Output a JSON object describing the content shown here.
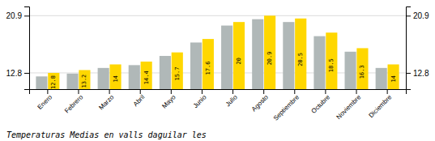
{
  "chart_data": {
    "type": "bar",
    "title": "Temperaturas Medias en valls daguilar les",
    "categories": [
      "Enero",
      "Febrero",
      "Marzo",
      "Abril",
      "Mayo",
      "Junio",
      "Julio",
      "Agosto",
      "Septiembre",
      "Octubre",
      "Noviembre",
      "Diciembre"
    ],
    "series": [
      {
        "color": "#B0B8B8",
        "values": [
          12.3,
          12.7,
          13.5,
          13.9,
          15.2,
          17.1,
          19.5,
          20.4,
          20.0,
          18.0,
          15.8,
          13.5
        ]
      },
      {
        "color": "#FFD700",
        "data_labels": true,
        "values": [
          12.8,
          13.2,
          14.0,
          14.4,
          15.7,
          17.6,
          20.0,
          20.9,
          20.5,
          18.5,
          16.3,
          14.0
        ]
      }
    ],
    "ylim": [
      10.5,
      22.2
    ],
    "yticks": [
      12.8,
      20.9
    ],
    "grid": true
  }
}
